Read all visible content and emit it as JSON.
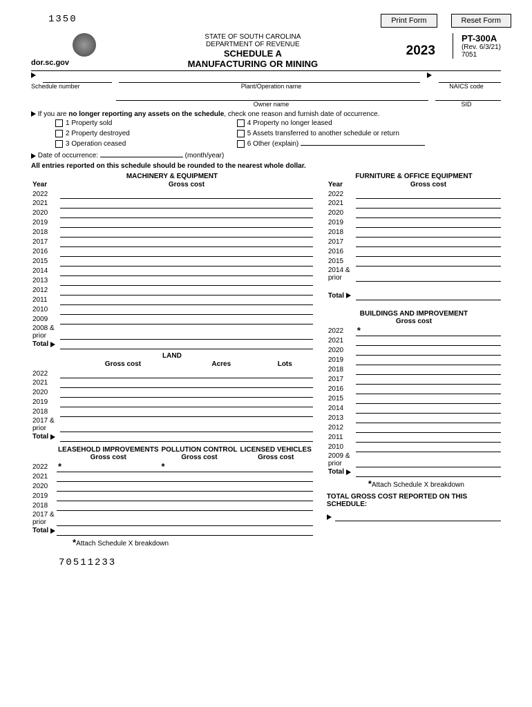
{
  "top": {
    "ocr": "1350",
    "print": "Print Form",
    "reset": "Reset Form"
  },
  "header": {
    "dor": "dor.sc.gov",
    "state": "STATE OF SOUTH CAROLINA",
    "dept": "DEPARTMENT OF REVENUE",
    "sched": "SCHEDULE A",
    "title": "MANUFACTURING OR MINING",
    "year": "2023",
    "code": "PT-300A",
    "rev": "(Rev. 6/3/21)",
    "num": "7051"
  },
  "labels": {
    "schedNum": "Schedule number",
    "plant": "Plant/Operation name",
    "naics": "NAICS code",
    "owner": "Owner name",
    "sid": "SID"
  },
  "noLonger": {
    "intro": "If you are ",
    "bold": "no longer reporting any assets on the schedule",
    "rest": ", check one reason and furnish date of occurrence.",
    "c1": "1  Property sold",
    "c2": "2  Property destroyed",
    "c3": "3  Operation ceased",
    "c4": "4  Property no longer leased",
    "c5": "5  Assets transferred to another schedule or return",
    "c6": "6  Other (explain)",
    "date": "Date of occurrence:",
    "my": "(month/year)"
  },
  "round": "All entries reported on this schedule should be rounded to the nearest whole dollar.",
  "sections": {
    "mach": "MACHINERY & EQUIPMENT",
    "furn": "FURNITURE & OFFICE EQUIPMENT",
    "bldg": "BUILDINGS AND IMPROVEMENT",
    "land": "LAND",
    "lease": "LEASEHOLD IMPROVEMENTS",
    "poll": "POLLUTION CONTROL",
    "lic": "LICENSED VEHICLES",
    "gross": "Gross cost",
    "acres": "Acres",
    "lots": "Lots",
    "yearHdr": "Year",
    "total": "Total",
    "prior08": "2008 & prior",
    "prior14": "2014 & prior",
    "prior17": "2017 & prior",
    "prior09": "2009 & prior"
  },
  "machYears": [
    "2022",
    "2021",
    "2020",
    "2019",
    "2018",
    "2017",
    "2016",
    "2015",
    "2014",
    "2013",
    "2012",
    "2011",
    "2010",
    "2009"
  ],
  "furnYears": [
    "2022",
    "2021",
    "2020",
    "2019",
    "2018",
    "2017",
    "2016",
    "2015"
  ],
  "bldgYears": [
    "2022",
    "2021",
    "2020",
    "2019",
    "2018",
    "2017",
    "2016",
    "2015",
    "2014",
    "2013",
    "2012",
    "2011",
    "2010"
  ],
  "landYears": [
    "2022",
    "2021",
    "2020",
    "2019",
    "2018"
  ],
  "leaseYears": [
    "2022",
    "2021",
    "2020",
    "2019",
    "2018"
  ],
  "attach": "Attach Schedule X breakdown",
  "totalGross": "TOTAL GROSS COST REPORTED ON THIS SCHEDULE:",
  "ocrBot": "70511233"
}
